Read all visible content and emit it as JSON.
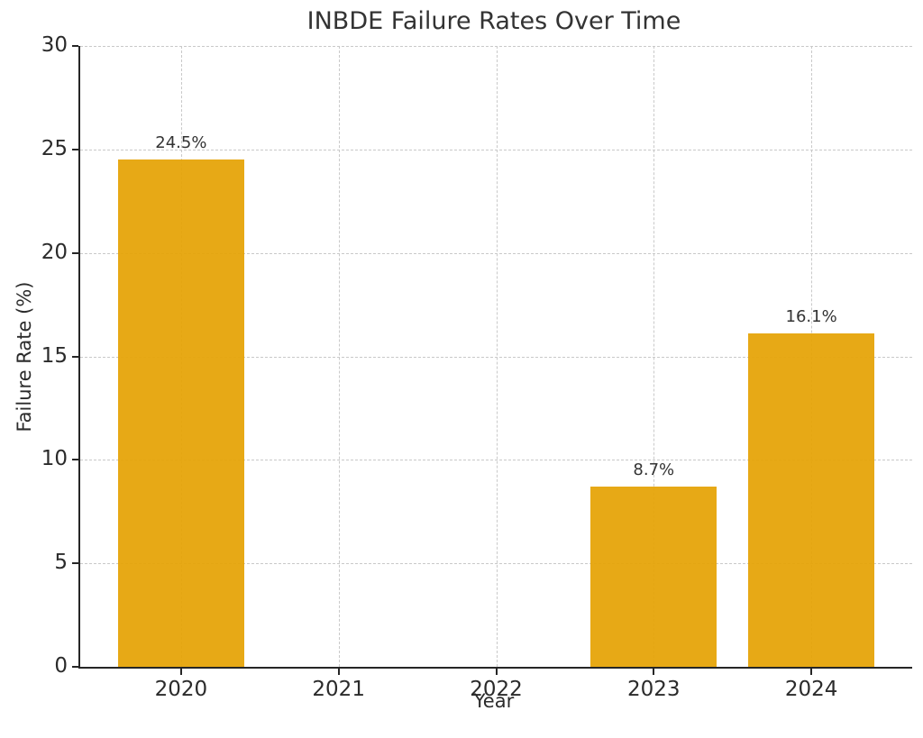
{
  "chart_data": {
    "type": "bar",
    "title": "INBDE Failure Rates Over Time",
    "xlabel": "Year",
    "ylabel": "Failure Rate (%)",
    "categories": [
      "2020",
      "2021",
      "2022",
      "2023",
      "2024"
    ],
    "x": [
      2020,
      2021,
      2022,
      2023,
      2024
    ],
    "values": [
      24.5,
      null,
      null,
      8.7,
      16.1
    ],
    "bar_labels": [
      "24.5%",
      null,
      null,
      "8.7%",
      "16.1%"
    ],
    "yticks": [
      0,
      5,
      10,
      15,
      20,
      25,
      30
    ],
    "ylim": [
      0,
      30
    ],
    "xlim": [
      2019.36,
      2024.64
    ],
    "bar_width": 0.8,
    "bar_color": "#E6A40A",
    "grid": true,
    "grid_style": "dashed",
    "grid_color": "#c9c9c9",
    "axis_color": "#262626",
    "text_color": "#2b2b2b",
    "legend": null,
    "spines": [
      "left",
      "bottom"
    ]
  }
}
